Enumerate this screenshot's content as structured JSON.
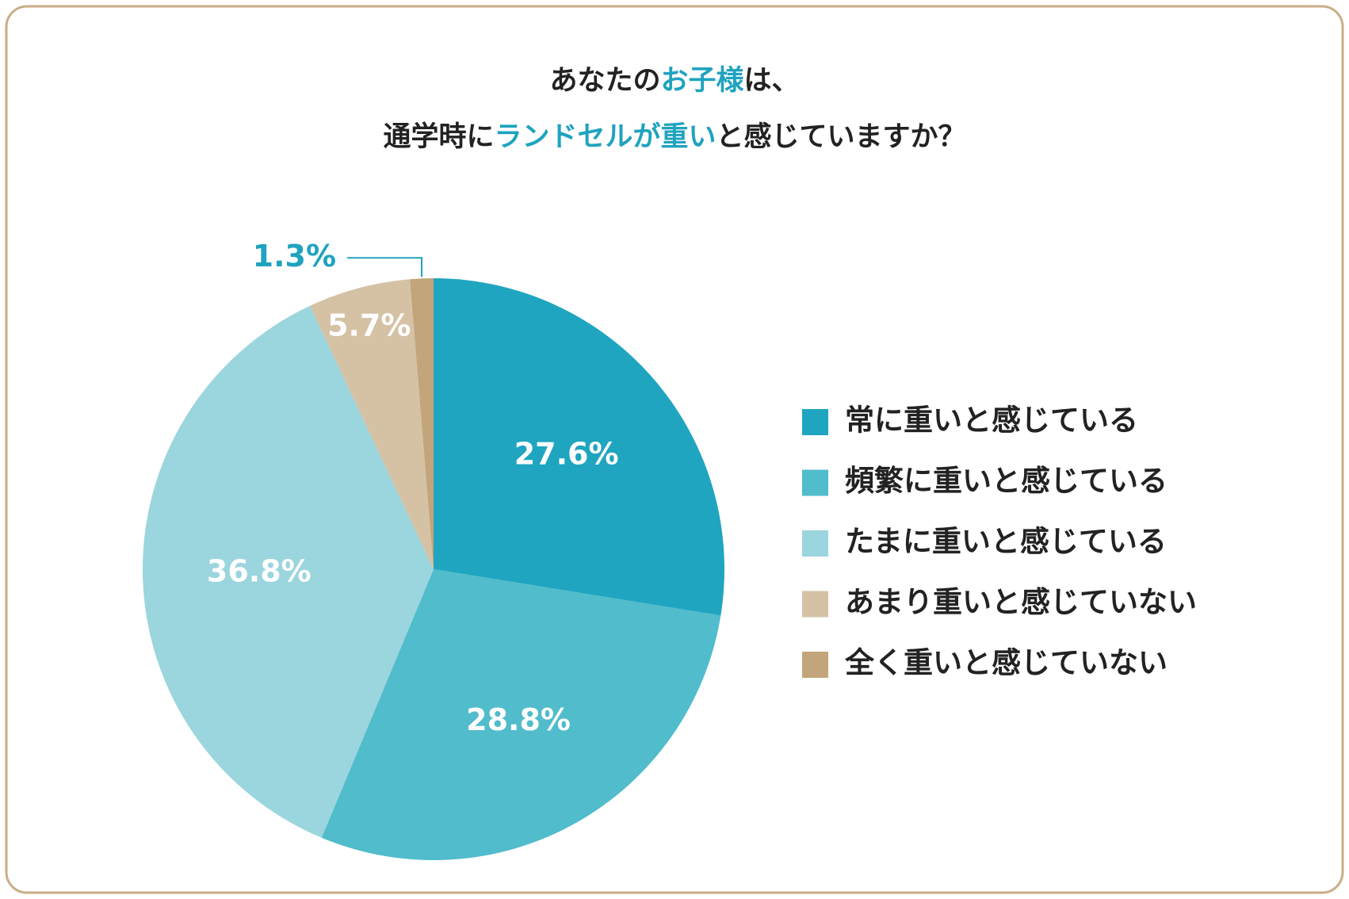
{
  "chart_data": {
    "type": "pie",
    "title": [
      [
        "あなたの",
        "お子様",
        "は、"
      ],
      [
        "通学時に",
        "ランドセルが重い",
        "と感じていますか？"
      ]
    ],
    "title_highlight_color": "#1fa3bf",
    "categories": [
      "常に重いと感じている",
      "頻繁に重いと感じている",
      "たまに重いと感じている",
      "あまり重いと感じていない",
      "全く重いと感じていない"
    ],
    "values": [
      27.6,
      28.8,
      36.8,
      5.7,
      1.3
    ],
    "value_labels": [
      "27.6%",
      "28.8%",
      "36.8%",
      "5.7%",
      "1.3%"
    ],
    "colors": [
      "#1fa5c0",
      "#50bccc",
      "#9bd5de",
      "#d5c2a5",
      "#c3a57b"
    ],
    "legend": "right"
  }
}
